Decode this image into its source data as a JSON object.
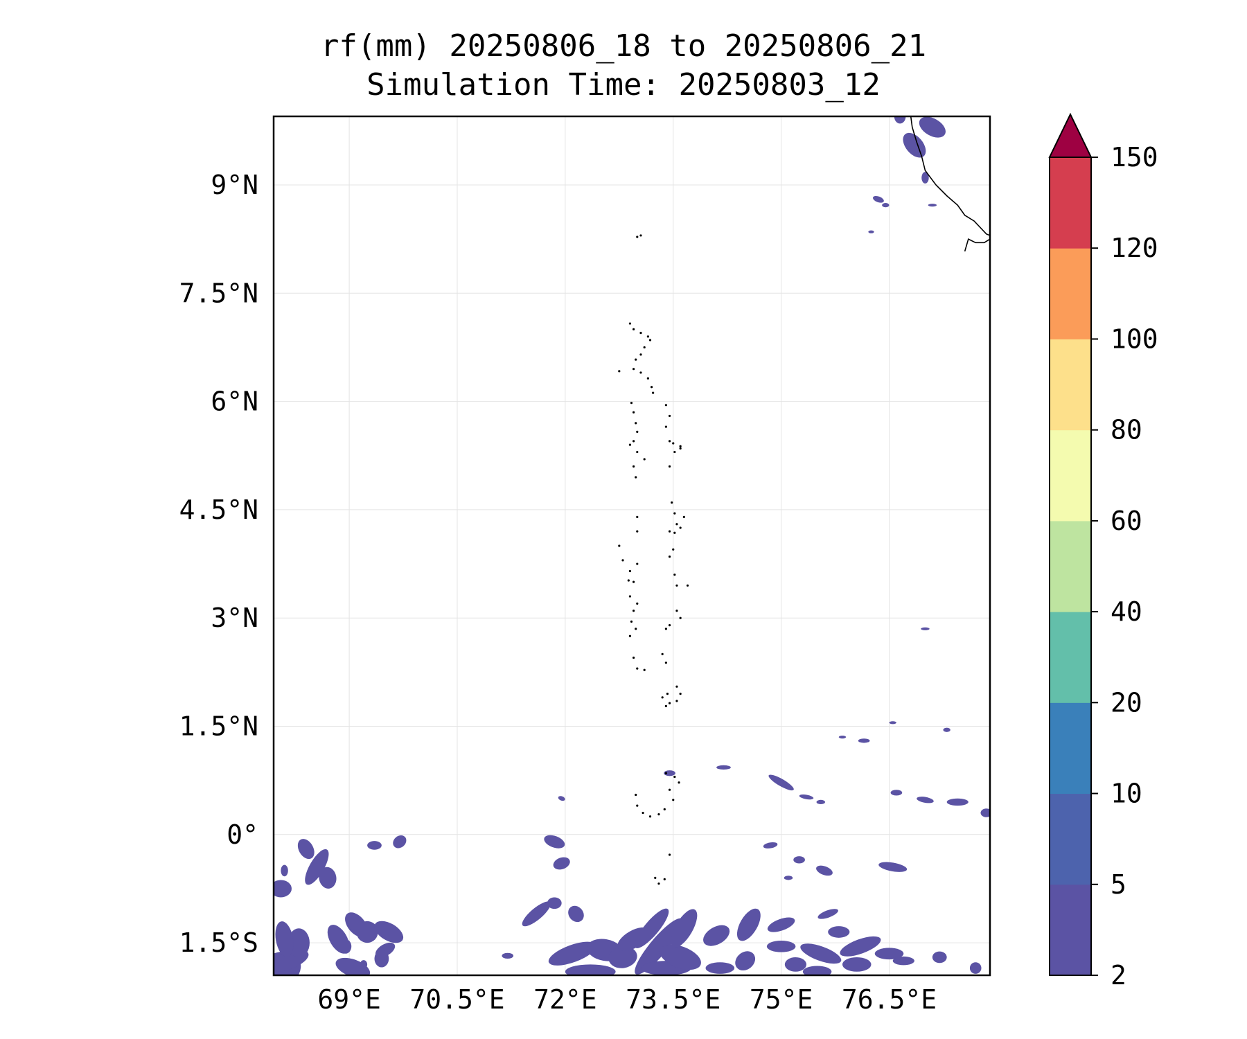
{
  "title": {
    "line1": "rf(mm) 20250806_18 to 20250806_21",
    "line2": "Simulation Time: 20250803_12"
  },
  "map": {
    "lon_range": [
      67.95,
      77.9
    ],
    "lat_range": [
      -1.95,
      9.95
    ],
    "lon_ticks": [
      {
        "value": 69.0,
        "label": "69°E"
      },
      {
        "value": 70.5,
        "label": "70.5°E"
      },
      {
        "value": 72.0,
        "label": "72°E"
      },
      {
        "value": 73.5,
        "label": "73.5°E"
      },
      {
        "value": 75.0,
        "label": "75°E"
      },
      {
        "value": 76.5,
        "label": "76.5°E"
      }
    ],
    "lat_ticks": [
      {
        "value": 9.0,
        "label": "9°N"
      },
      {
        "value": 7.5,
        "label": "7.5°N"
      },
      {
        "value": 6.0,
        "label": "6°N"
      },
      {
        "value": 4.5,
        "label": "4.5°N"
      },
      {
        "value": 3.0,
        "label": "3°N"
      },
      {
        "value": 1.5,
        "label": "1.5°N"
      },
      {
        "value": 0.0,
        "label": "0°"
      },
      {
        "value": -1.5,
        "label": "1.5°S"
      }
    ],
    "gridlines": true,
    "rain_color": "#5b53a4",
    "coast_color": "#000000",
    "coastline_india": [
      [
        76.8,
        9.95
      ],
      [
        76.82,
        9.8
      ],
      [
        76.88,
        9.6
      ],
      [
        76.95,
        9.4
      ],
      [
        77.0,
        9.2
      ],
      [
        77.15,
        9.0
      ],
      [
        77.3,
        8.85
      ],
      [
        77.45,
        8.72
      ],
      [
        77.55,
        8.58
      ],
      [
        77.68,
        8.5
      ],
      [
        77.85,
        8.32
      ],
      [
        77.9,
        8.3
      ],
      [
        77.9,
        8.25
      ],
      [
        77.82,
        8.2
      ],
      [
        77.7,
        8.2
      ],
      [
        77.6,
        8.25
      ],
      [
        77.55,
        8.08
      ]
    ],
    "islands": [
      [
        73.0,
        8.28
      ],
      [
        73.05,
        8.3
      ],
      [
        72.9,
        7.08
      ],
      [
        72.95,
        7.0
      ],
      [
        73.05,
        6.95
      ],
      [
        73.15,
        6.9
      ],
      [
        73.18,
        6.85
      ],
      [
        73.1,
        6.75
      ],
      [
        73.05,
        6.65
      ],
      [
        72.98,
        6.58
      ],
      [
        72.95,
        6.45
      ],
      [
        73.05,
        6.4
      ],
      [
        73.15,
        6.32
      ],
      [
        73.2,
        6.2
      ],
      [
        73.22,
        6.12
      ],
      [
        72.75,
        6.42
      ],
      [
        72.92,
        5.98
      ],
      [
        72.95,
        5.85
      ],
      [
        72.98,
        5.7
      ],
      [
        73.0,
        5.58
      ],
      [
        72.95,
        5.45
      ],
      [
        72.9,
        5.4
      ],
      [
        73.0,
        5.3
      ],
      [
        73.1,
        5.2
      ],
      [
        72.95,
        5.1
      ],
      [
        72.98,
        4.95
      ],
      [
        73.4,
        5.95
      ],
      [
        73.45,
        5.8
      ],
      [
        73.4,
        5.65
      ],
      [
        73.45,
        5.45
      ],
      [
        73.5,
        5.42
      ],
      [
        73.6,
        5.38
      ],
      [
        73.52,
        5.3
      ],
      [
        73.6,
        5.35
      ],
      [
        73.45,
        5.1
      ],
      [
        73.48,
        4.6
      ],
      [
        73.52,
        4.45
      ],
      [
        73.55,
        4.3
      ],
      [
        73.65,
        4.4
      ],
      [
        73.6,
        4.25
      ],
      [
        73.52,
        4.18
      ],
      [
        73.45,
        4.2
      ],
      [
        73.0,
        4.4
      ],
      [
        73.0,
        4.2
      ],
      [
        72.75,
        4.0
      ],
      [
        72.8,
        3.8
      ],
      [
        72.9,
        3.65
      ],
      [
        73.0,
        3.75
      ],
      [
        72.95,
        3.5
      ],
      [
        72.88,
        3.52
      ],
      [
        73.5,
        3.95
      ],
      [
        73.45,
        3.85
      ],
      [
        73.52,
        3.6
      ],
      [
        73.55,
        3.45
      ],
      [
        73.7,
        3.45
      ],
      [
        72.9,
        3.3
      ],
      [
        73.0,
        3.2
      ],
      [
        72.95,
        3.1
      ],
      [
        72.92,
        2.95
      ],
      [
        72.98,
        2.85
      ],
      [
        72.9,
        2.75
      ],
      [
        73.55,
        3.1
      ],
      [
        73.6,
        3.0
      ],
      [
        73.45,
        2.9
      ],
      [
        73.4,
        2.85
      ],
      [
        72.95,
        2.45
      ],
      [
        73.0,
        2.3
      ],
      [
        73.1,
        2.28
      ],
      [
        73.35,
        2.5
      ],
      [
        73.4,
        2.38
      ],
      [
        73.35,
        1.9
      ],
      [
        73.42,
        1.95
      ],
      [
        73.55,
        2.05
      ],
      [
        73.6,
        1.95
      ],
      [
        73.55,
        1.85
      ],
      [
        73.45,
        1.82
      ],
      [
        73.4,
        1.78
      ],
      [
        73.4,
        0.85
      ],
      [
        73.52,
        0.8
      ],
      [
        73.58,
        0.72
      ],
      [
        73.45,
        0.62
      ],
      [
        73.5,
        0.48
      ],
      [
        72.98,
        0.55
      ],
      [
        73.0,
        0.4
      ],
      [
        73.08,
        0.3
      ],
      [
        73.18,
        0.25
      ],
      [
        73.3,
        0.28
      ],
      [
        73.38,
        0.35
      ],
      [
        73.45,
        -0.28
      ],
      [
        73.25,
        -0.6
      ],
      [
        73.3,
        -0.68
      ],
      [
        73.38,
        -0.62
      ]
    ],
    "rain_patches": [
      [
        68.0,
        -1.9,
        0.35,
        0.25,
        30
      ],
      [
        68.15,
        -1.75,
        0.3,
        0.12,
        20
      ],
      [
        68.3,
        -1.5,
        0.15,
        0.2,
        0
      ],
      [
        68.1,
        -1.45,
        0.12,
        0.25,
        10
      ],
      [
        68.05,
        -0.75,
        0.15,
        0.12,
        0
      ],
      [
        68.4,
        -0.2,
        0.1,
        0.15,
        30
      ],
      [
        68.1,
        -0.5,
        0.05,
        0.08,
        0
      ],
      [
        68.55,
        -0.45,
        0.28,
        0.1,
        60
      ],
      [
        68.7,
        -0.6,
        0.12,
        0.15,
        10
      ],
      [
        68.85,
        -1.45,
        0.12,
        0.22,
        30
      ],
      [
        68.95,
        -1.55,
        0.08,
        0.1,
        0
      ],
      [
        69.05,
        -1.85,
        0.25,
        0.12,
        -20
      ],
      [
        69.2,
        -1.8,
        0.05,
        0.06,
        0
      ],
      [
        69.1,
        -1.25,
        0.12,
        0.2,
        40
      ],
      [
        69.25,
        -1.35,
        0.15,
        0.15,
        -10
      ],
      [
        69.5,
        -1.6,
        0.15,
        0.08,
        30
      ],
      [
        69.55,
        -1.35,
        0.12,
        0.22,
        60
      ],
      [
        69.45,
        -1.72,
        0.1,
        0.12,
        0
      ],
      [
        69.35,
        -0.15,
        0.1,
        0.06,
        0
      ],
      [
        69.7,
        -0.1,
        0.1,
        0.08,
        40
      ],
      [
        71.85,
        -0.1,
        0.08,
        0.15,
        70
      ],
      [
        71.95,
        -0.4,
        0.12,
        0.08,
        20
      ],
      [
        71.6,
        -1.1,
        0.25,
        0.08,
        40
      ],
      [
        71.85,
        -0.95,
        0.1,
        0.08,
        0
      ],
      [
        72.15,
        -1.1,
        0.1,
        0.12,
        40
      ],
      [
        71.2,
        -1.68,
        0.08,
        0.04,
        0
      ],
      [
        72.35,
        -1.9,
        0.35,
        0.1,
        0
      ],
      [
        72.1,
        -1.65,
        0.35,
        0.12,
        20
      ],
      [
        72.55,
        -1.6,
        0.25,
        0.15,
        -10
      ],
      [
        72.8,
        -1.7,
        0.2,
        0.15,
        10
      ],
      [
        72.95,
        -1.45,
        0.25,
        0.12,
        30
      ],
      [
        73.2,
        -1.3,
        0.35,
        0.1,
        50
      ],
      [
        73.3,
        -1.55,
        0.5,
        0.12,
        50
      ],
      [
        73.4,
        -1.85,
        0.35,
        0.1,
        0
      ],
      [
        73.6,
        -1.7,
        0.3,
        0.15,
        -20
      ],
      [
        73.65,
        -1.3,
        0.3,
        0.12,
        60
      ],
      [
        74.1,
        -1.4,
        0.2,
        0.12,
        30
      ],
      [
        74.15,
        -1.85,
        0.2,
        0.08,
        0
      ],
      [
        74.5,
        -1.75,
        0.15,
        0.12,
        40
      ],
      [
        74.55,
        -1.25,
        0.25,
        0.12,
        60
      ],
      [
        75.0,
        -1.25,
        0.2,
        0.08,
        20
      ],
      [
        75.0,
        -1.55,
        0.2,
        0.08,
        0
      ],
      [
        75.2,
        -1.8,
        0.15,
        0.1,
        0
      ],
      [
        75.5,
        -1.9,
        0.2,
        0.08,
        0
      ],
      [
        75.55,
        -1.65,
        0.3,
        0.1,
        -20
      ],
      [
        75.8,
        -1.35,
        0.15,
        0.08,
        0
      ],
      [
        76.05,
        -1.8,
        0.2,
        0.1,
        0
      ],
      [
        76.1,
        -1.55,
        0.3,
        0.1,
        20
      ],
      [
        76.5,
        -1.65,
        0.2,
        0.08,
        0
      ],
      [
        76.7,
        -1.75,
        0.15,
        0.06,
        0
      ],
      [
        77.2,
        -1.7,
        0.1,
        0.08,
        0
      ],
      [
        77.7,
        -1.85,
        0.08,
        0.08,
        0
      ],
      [
        75.6,
        -0.5,
        0.12,
        0.06,
        -20
      ],
      [
        75.65,
        -1.1,
        0.15,
        0.05,
        20
      ],
      [
        74.85,
        -0.15,
        0.1,
        0.04,
        10
      ],
      [
        75.25,
        -0.35,
        0.08,
        0.05,
        0
      ],
      [
        75.1,
        -0.6,
        0.06,
        0.03,
        0
      ],
      [
        76.55,
        -0.45,
        0.2,
        0.06,
        -10
      ],
      [
        76.6,
        0.58,
        0.08,
        0.04,
        0
      ],
      [
        77.0,
        0.48,
        0.12,
        0.04,
        -10
      ],
      [
        77.45,
        0.45,
        0.15,
        0.05,
        0
      ],
      [
        77.85,
        0.3,
        0.08,
        0.06,
        0
      ],
      [
        75.0,
        0.72,
        0.2,
        0.05,
        -30
      ],
      [
        75.35,
        0.52,
        0.1,
        0.03,
        -10
      ],
      [
        75.55,
        0.45,
        0.06,
        0.03,
        0
      ],
      [
        74.2,
        0.93,
        0.1,
        0.03,
        0
      ],
      [
        73.45,
        0.85,
        0.08,
        0.04,
        0
      ],
      [
        71.95,
        0.5,
        0.05,
        0.03,
        -20
      ],
      [
        77.3,
        1.45,
        0.05,
        0.03,
        0
      ],
      [
        76.15,
        1.3,
        0.08,
        0.03,
        0
      ],
      [
        75.85,
        1.35,
        0.05,
        0.02,
        0
      ],
      [
        76.55,
        1.55,
        0.05,
        0.02,
        0
      ],
      [
        77.1,
        9.8,
        0.12,
        0.2,
        60
      ],
      [
        76.85,
        9.55,
        0.12,
        0.2,
        40
      ],
      [
        76.65,
        9.95,
        0.08,
        0.1,
        0
      ],
      [
        77.0,
        9.1,
        0.05,
        0.08,
        0
      ],
      [
        76.35,
        8.8,
        0.08,
        0.04,
        -20
      ],
      [
        76.45,
        8.72,
        0.05,
        0.03,
        0
      ],
      [
        76.25,
        8.35,
        0.04,
        0.02,
        0
      ],
      [
        77.1,
        8.72,
        0.06,
        0.02,
        0
      ],
      [
        77.0,
        2.85,
        0.06,
        0.02,
        0
      ]
    ]
  },
  "colorbar": {
    "levels": [
      2,
      5,
      10,
      20,
      40,
      60,
      80,
      100,
      120,
      150
    ],
    "tick_labels": [
      "2",
      "5",
      "10",
      "20",
      "40",
      "60",
      "80",
      "100",
      "120",
      "150"
    ],
    "colors": [
      "#5b53a4",
      "#4d63ad",
      "#3a80ba",
      "#63bfaa",
      "#bee4a0",
      "#f4fbaf",
      "#fde08b",
      "#fb9c59",
      "#d53e4f"
    ],
    "extend_color": "#9e0142"
  }
}
